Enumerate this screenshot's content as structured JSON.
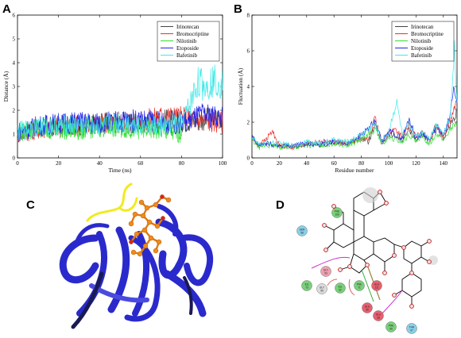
{
  "panels": {
    "A": "A",
    "B": "B",
    "C": "C",
    "D": "D"
  },
  "colors": {
    "Irinotecan": "#444444",
    "Bromocriptine": "#e8302a",
    "Nilotinib": "#33dd33",
    "Etoposide": "#2222ee",
    "Bafetinib": "#44e8e8"
  },
  "chart_data": [
    {
      "type": "line",
      "panel": "A",
      "xlabel": "Time (ns)",
      "ylabel": "Distance (Å)",
      "xlim": [
        0,
        100
      ],
      "ylim": [
        0,
        6
      ],
      "xticks": [
        0,
        20,
        40,
        60,
        80,
        100
      ],
      "yticks": [
        0,
        1,
        2,
        3,
        4,
        5,
        6
      ],
      "legend_position": "top-right",
      "series": [
        {
          "name": "Irinotecan",
          "x": [
            0,
            10,
            20,
            30,
            40,
            50,
            60,
            70,
            80,
            90,
            100
          ],
          "values": [
            1.0,
            1.25,
            1.35,
            1.4,
            1.45,
            1.5,
            1.45,
            1.6,
            1.55,
            1.6,
            1.75
          ]
        },
        {
          "name": "Bromocriptine",
          "x": [
            0,
            10,
            20,
            30,
            40,
            50,
            60,
            70,
            80,
            90,
            100
          ],
          "values": [
            1.0,
            1.2,
            1.3,
            1.35,
            1.45,
            1.4,
            1.5,
            1.75,
            1.7,
            1.55,
            1.5
          ]
        },
        {
          "name": "Nilotinib",
          "x": [
            0,
            10,
            20,
            30,
            40,
            50,
            60,
            70,
            80
          ],
          "values": [
            1.05,
            1.25,
            1.2,
            1.15,
            1.3,
            1.25,
            1.2,
            1.15,
            1.0
          ]
        },
        {
          "name": "Etoposide",
          "x": [
            0,
            10,
            20,
            30,
            40,
            50,
            60,
            70,
            80,
            90,
            100
          ],
          "values": [
            1.1,
            1.35,
            1.45,
            1.5,
            1.45,
            1.55,
            1.6,
            1.5,
            1.45,
            1.8,
            1.7
          ]
        },
        {
          "name": "Bafetinib",
          "x": [
            0,
            10,
            20,
            30,
            40,
            50,
            60,
            70,
            80,
            84,
            88,
            92,
            96,
            100
          ],
          "values": [
            1.1,
            1.3,
            1.35,
            1.4,
            1.3,
            1.5,
            1.4,
            1.35,
            1.4,
            2.2,
            3.2,
            3.0,
            3.3,
            3.1
          ]
        }
      ]
    },
    {
      "type": "line",
      "panel": "B",
      "xlabel": "Residue number",
      "ylabel": "Fluctuation (Å)",
      "xlim": [
        0,
        150
      ],
      "ylim": [
        0,
        8
      ],
      "xticks": [
        0,
        20,
        40,
        60,
        80,
        100,
        120,
        140
      ],
      "yticks": [
        0,
        2,
        4,
        6,
        8
      ],
      "legend_position": "top-right",
      "series": [
        {
          "name": "Irinotecan",
          "x": [
            0,
            5,
            10,
            20,
            30,
            40,
            50,
            60,
            70,
            80,
            85,
            90,
            95,
            100,
            105,
            110,
            115,
            120,
            125,
            130,
            135,
            140,
            145,
            150
          ],
          "values": [
            1.2,
            0.7,
            0.8,
            0.7,
            0.6,
            0.8,
            0.7,
            0.9,
            0.8,
            1.2,
            0.9,
            1.8,
            0.8,
            1.3,
            1.2,
            1.0,
            1.6,
            1.0,
            1.3,
            0.9,
            1.6,
            1.1,
            1.8,
            2.6
          ]
        },
        {
          "name": "Bromocriptine",
          "x": [
            0,
            5,
            10,
            15,
            20,
            30,
            40,
            50,
            60,
            70,
            80,
            85,
            90,
            95,
            100,
            105,
            110,
            115,
            120,
            125,
            130,
            135,
            140,
            145,
            150
          ],
          "values": [
            1.1,
            0.7,
            1.0,
            1.5,
            0.7,
            0.6,
            0.8,
            0.9,
            0.9,
            0.8,
            1.1,
            1.0,
            2.2,
            0.9,
            1.4,
            1.6,
            1.2,
            1.8,
            1.2,
            1.4,
            1.0,
            1.9,
            1.2,
            2.1,
            3.2
          ]
        },
        {
          "name": "Nilotinib",
          "x": [
            0,
            5,
            10,
            20,
            30,
            40,
            50,
            60,
            70,
            80,
            90,
            95,
            100,
            105,
            110,
            115,
            120,
            125,
            130,
            135,
            140,
            145,
            150
          ],
          "values": [
            1.0,
            0.6,
            0.7,
            0.6,
            0.6,
            0.7,
            0.7,
            0.8,
            0.7,
            1.0,
            1.6,
            0.8,
            1.1,
            1.0,
            0.9,
            1.3,
            0.9,
            1.1,
            0.8,
            1.4,
            1.0,
            1.6,
            2.0
          ]
        },
        {
          "name": "Etoposide",
          "x": [
            0,
            5,
            10,
            20,
            30,
            40,
            50,
            60,
            70,
            80,
            90,
            95,
            100,
            105,
            110,
            115,
            120,
            125,
            130,
            135,
            140,
            145,
            148,
            150
          ],
          "values": [
            1.1,
            0.7,
            0.8,
            0.7,
            0.7,
            0.8,
            0.8,
            0.9,
            0.8,
            1.3,
            2.0,
            0.9,
            1.5,
            1.3,
            1.1,
            2.2,
            1.1,
            1.4,
            1.0,
            1.8,
            1.2,
            2.4,
            4.0,
            2.8
          ]
        },
        {
          "name": "Bafetinib",
          "x": [
            0,
            5,
            10,
            20,
            30,
            40,
            50,
            60,
            70,
            80,
            90,
            95,
            100,
            103,
            106,
            110,
            115,
            120,
            125,
            130,
            135,
            140,
            145,
            148,
            150
          ],
          "values": [
            1.2,
            0.7,
            0.9,
            0.8,
            0.7,
            0.9,
            0.8,
            1.0,
            0.9,
            1.3,
            1.9,
            1.0,
            1.4,
            2.4,
            3.1,
            1.3,
            1.9,
            1.2,
            1.5,
            1.1,
            2.0,
            1.3,
            2.3,
            6.2,
            3.0
          ]
        }
      ]
    }
  ],
  "residues": [
    "PHE 106",
    "SER 58",
    "GLY 93",
    "ILE 73",
    "GLY 95",
    "ILE 62",
    "PHE 71",
    "GLU 111",
    "GLU 90",
    "GLU 38",
    "PHE 96",
    "THR 97"
  ]
}
